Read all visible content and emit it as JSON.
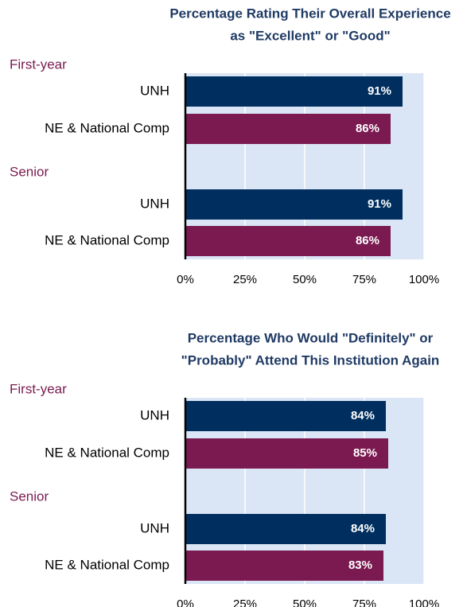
{
  "chart_data": [
    {
      "type": "bar",
      "orientation": "horizontal",
      "title": [
        "Percentage Rating Their Overall Experience",
        "as \"Excellent\" or \"Good\""
      ],
      "categories": [
        "First-year",
        "Senior"
      ],
      "series": [
        {
          "name": "UNH",
          "color": "#002f5f",
          "values": [
            91,
            91
          ],
          "value_labels": [
            "91%",
            "91%"
          ]
        },
        {
          "name": "NE & National Comp",
          "color": "#7a1a50",
          "values": [
            86,
            86
          ],
          "value_labels": [
            "86%",
            "86%"
          ]
        }
      ],
      "xlim": [
        0,
        100
      ],
      "xticks": [
        {
          "value": 0,
          "label": "0%"
        },
        {
          "value": 25,
          "label": "25%"
        },
        {
          "value": 50,
          "label": "50%"
        },
        {
          "value": 75,
          "label": "75%"
        },
        {
          "value": 100,
          "label": "100%"
        }
      ],
      "grid": true
    },
    {
      "type": "bar",
      "orientation": "horizontal",
      "title": [
        "Percentage Who Would \"Definitely\" or",
        "\"Probably\" Attend This Institution Again"
      ],
      "categories": [
        "First-year",
        "Senior"
      ],
      "series": [
        {
          "name": "UNH",
          "color": "#002f5f",
          "values": [
            84,
            84
          ],
          "value_labels": [
            "84%",
            "84%"
          ]
        },
        {
          "name": "NE & National Comp",
          "color": "#7a1a50",
          "values": [
            85,
            83
          ],
          "value_labels": [
            "85%",
            "83%"
          ]
        }
      ],
      "xlim": [
        0,
        100
      ],
      "xticks": [
        {
          "value": 0,
          "label": "0%"
        },
        {
          "value": 25,
          "label": "25%"
        },
        {
          "value": 50,
          "label": "50%"
        },
        {
          "value": 75,
          "label": "75%"
        },
        {
          "value": 100,
          "label": "100%"
        }
      ],
      "grid": true
    }
  ]
}
